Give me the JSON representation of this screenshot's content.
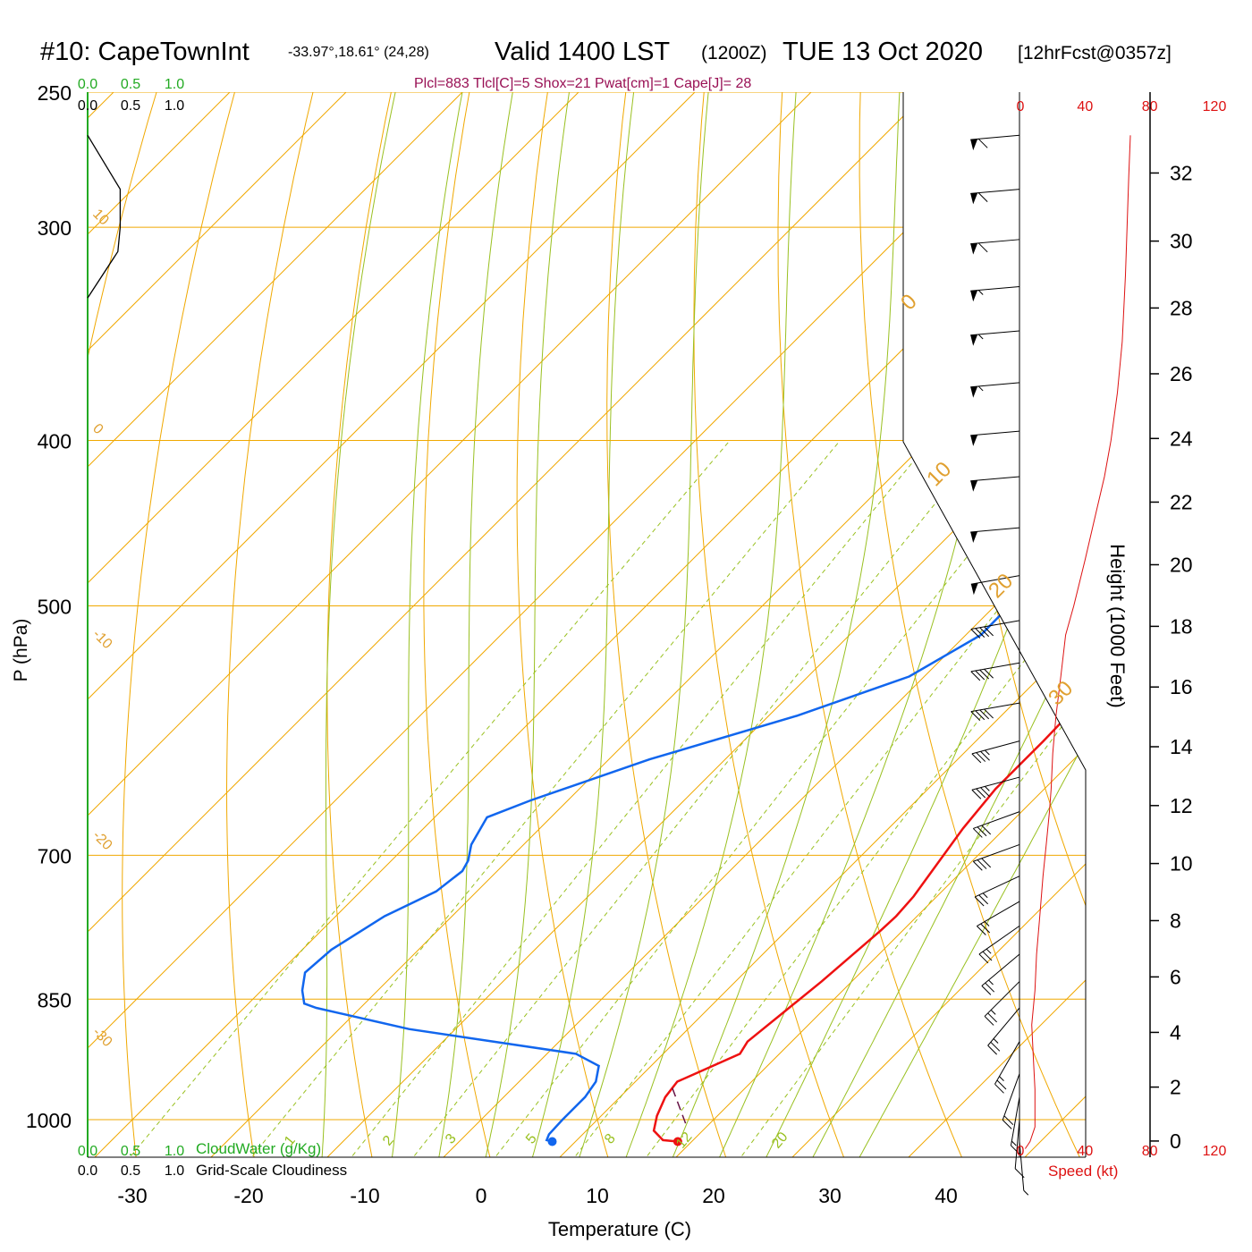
{
  "header": {
    "station": "#10: CapeTownInt",
    "coords": "-33.97°,18.61° (24,28)",
    "valid": "Valid 1400 LST",
    "zulu": "(1200Z)",
    "date": "TUE 13 Oct 2020",
    "forecast": "[12hrFcst@0357z]"
  },
  "indices": "Plcl=883 Tlcl[C]=5 Shox=21 Pwat[cm]=1 Cape[J]= 28",
  "colors": {
    "temperature": "#ee1111",
    "dewpoint": "#1166ee",
    "isotherm": "#f0a800",
    "adiabat": "#99c020",
    "wind_speed": "#dd1111",
    "cloud": "#22aa22",
    "parcel": "#661144"
  },
  "chart_data": {
    "type": "line",
    "subtype": "skew-t log-p sounding",
    "xlabel": "Temperature (C)",
    "ylabel": "P (hPa)",
    "xlim": [
      -35,
      45
    ],
    "ylim_hpa": [
      1050,
      250
    ],
    "x_ticks": [
      "-30",
      "-20",
      "-10",
      "0",
      "10",
      "20",
      "30",
      "40"
    ],
    "pressure_ticks": [
      "250",
      "300",
      "400",
      "500",
      "700",
      "850",
      "1000"
    ],
    "height_label": "Height (1000 Feet)",
    "height_ticks": [
      "0",
      "2",
      "4",
      "6",
      "8",
      "10",
      "12",
      "14",
      "16",
      "18",
      "20",
      "22",
      "24",
      "26",
      "28",
      "30",
      "32"
    ],
    "speed_label": "Speed (kt)",
    "speed_ticks": [
      "0",
      "40",
      "80",
      "120"
    ],
    "cloud_water_label": "CloudWater (g/Kg)",
    "cloudiness_label": "Grid-Scale Cloudiness",
    "cloud_scale": [
      "0.0",
      "0.5",
      "1.0"
    ],
    "isotherm_labels": [
      "10",
      "0",
      "-10",
      "-20",
      "-30",
      "0",
      "10",
      "20",
      "30"
    ],
    "mixing_ratio_labels": [
      "1",
      "2",
      "3",
      "5",
      "8",
      "12",
      "20"
    ],
    "series": [
      {
        "name": "Temperature",
        "points": [
          [
            18.8,
            1030
          ],
          [
            17.4,
            1028
          ],
          [
            15.8,
            1015
          ],
          [
            14.8,
            995
          ],
          [
            13.9,
            970
          ],
          [
            13.6,
            950
          ],
          [
            14.2,
            943
          ],
          [
            16.6,
            915
          ],
          [
            16.2,
            900
          ],
          [
            16.7,
            870
          ],
          [
            17.4,
            830
          ],
          [
            18.1,
            775
          ],
          [
            18.2,
            760
          ],
          [
            18.0,
            740
          ],
          [
            17.4,
            715
          ],
          [
            16.4,
            675
          ],
          [
            15.8,
            640
          ],
          [
            15.8,
            600
          ],
          [
            15.6,
            560
          ],
          [
            15.2,
            520
          ],
          [
            14.7,
            500
          ],
          [
            14.2,
            480
          ],
          [
            13.5,
            450
          ],
          [
            12.3,
            420
          ],
          [
            11.3,
            400
          ],
          [
            9.2,
            370
          ],
          [
            7.2,
            345
          ],
          [
            5.7,
            325
          ],
          [
            4.2,
            305
          ],
          [
            2.5,
            285
          ],
          [
            0.2,
            265
          ]
        ]
      },
      {
        "name": "Dewpoint",
        "points": [
          [
            8.0,
            1030
          ],
          [
            7.4,
            1028
          ],
          [
            7.1,
            1020
          ],
          [
            7.0,
            1000
          ],
          [
            7.0,
            970
          ],
          [
            6.6,
            950
          ],
          [
            5.5,
            930
          ],
          [
            2.5,
            915
          ],
          [
            -14.0,
            885
          ],
          [
            -23.8,
            860
          ],
          [
            -25.2,
            855
          ],
          [
            -26.5,
            840
          ],
          [
            -27.8,
            820
          ],
          [
            -27.5,
            795
          ],
          [
            -25.8,
            760
          ],
          [
            -23.5,
            735
          ],
          [
            -23.0,
            715
          ],
          [
            -23.4,
            705
          ],
          [
            -24.5,
            690
          ],
          [
            -25.5,
            665
          ],
          [
            -23.2,
            650
          ],
          [
            -16.5,
            615
          ],
          [
            -7.6,
            580
          ],
          [
            -1.3,
            550
          ],
          [
            1.3,
            520
          ],
          [
            1.2,
            485
          ],
          [
            0.8,
            470
          ],
          [
            -0.7,
            435
          ],
          [
            -2.3,
            400
          ],
          [
            -1.3,
            375
          ],
          [
            0.8,
            345
          ],
          [
            1.0,
            325
          ],
          [
            0.3,
            305
          ],
          [
            -1.3,
            285
          ],
          [
            -3.8,
            265
          ]
        ]
      },
      {
        "name": "Parcel",
        "points": [
          [
            17.9,
            1005
          ],
          [
            13.7,
            958
          ]
        ]
      }
    ],
    "wind_barbs": [
      {
        "p": 265,
        "speed": 60,
        "dir": 275
      },
      {
        "p": 285,
        "speed": 60,
        "dir": 275
      },
      {
        "p": 305,
        "speed": 60,
        "dir": 275
      },
      {
        "p": 325,
        "speed": 55,
        "dir": 275
      },
      {
        "p": 345,
        "speed": 55,
        "dir": 275
      },
      {
        "p": 370,
        "speed": 55,
        "dir": 275
      },
      {
        "p": 395,
        "speed": 50,
        "dir": 275
      },
      {
        "p": 420,
        "speed": 50,
        "dir": 275
      },
      {
        "p": 450,
        "speed": 50,
        "dir": 275
      },
      {
        "p": 480,
        "speed": 50,
        "dir": 280
      },
      {
        "p": 510,
        "speed": 40,
        "dir": 280
      },
      {
        "p": 540,
        "speed": 40,
        "dir": 280
      },
      {
        "p": 570,
        "speed": 40,
        "dir": 280
      },
      {
        "p": 600,
        "speed": 35,
        "dir": 285
      },
      {
        "p": 630,
        "speed": 35,
        "dir": 285
      },
      {
        "p": 660,
        "speed": 30,
        "dir": 290
      },
      {
        "p": 690,
        "speed": 30,
        "dir": 290
      },
      {
        "p": 720,
        "speed": 25,
        "dir": 295
      },
      {
        "p": 745,
        "speed": 25,
        "dir": 300
      },
      {
        "p": 770,
        "speed": 25,
        "dir": 305
      },
      {
        "p": 800,
        "speed": 25,
        "dir": 310
      },
      {
        "p": 830,
        "speed": 25,
        "dir": 315
      },
      {
        "p": 860,
        "speed": 25,
        "dir": 320
      },
      {
        "p": 900,
        "speed": 25,
        "dir": 330
      },
      {
        "p": 940,
        "speed": 20,
        "dir": 340
      },
      {
        "p": 970,
        "speed": 15,
        "dir": 350
      },
      {
        "p": 1000,
        "speed": 10,
        "dir": 355
      },
      {
        "p": 1030,
        "speed": 5,
        "dir": 5
      }
    ],
    "speed_profile": [
      [
        3,
        1040
      ],
      [
        6,
        1030
      ],
      [
        9,
        1010
      ],
      [
        9,
        960
      ],
      [
        8,
        920
      ],
      [
        7,
        880
      ],
      [
        9,
        840
      ],
      [
        10,
        800
      ],
      [
        12,
        760
      ],
      [
        14,
        720
      ],
      [
        16,
        690
      ],
      [
        18,
        660
      ],
      [
        19,
        640
      ],
      [
        20,
        610
      ],
      [
        22,
        580
      ],
      [
        25,
        550
      ],
      [
        28,
        520
      ],
      [
        33,
        500
      ],
      [
        40,
        470
      ],
      [
        47,
        440
      ],
      [
        52,
        420
      ],
      [
        56,
        400
      ],
      [
        60,
        375
      ],
      [
        63,
        350
      ],
      [
        65,
        320
      ],
      [
        66,
        300
      ],
      [
        67,
        280
      ],
      [
        68,
        265
      ]
    ],
    "cloudiness_profile": [
      [
        0,
        265
      ],
      [
        2.8,
        285
      ],
      [
        2.8,
        300
      ],
      [
        2.6,
        310
      ],
      [
        0,
        330
      ]
    ],
    "legend_position": "bottom-left"
  }
}
